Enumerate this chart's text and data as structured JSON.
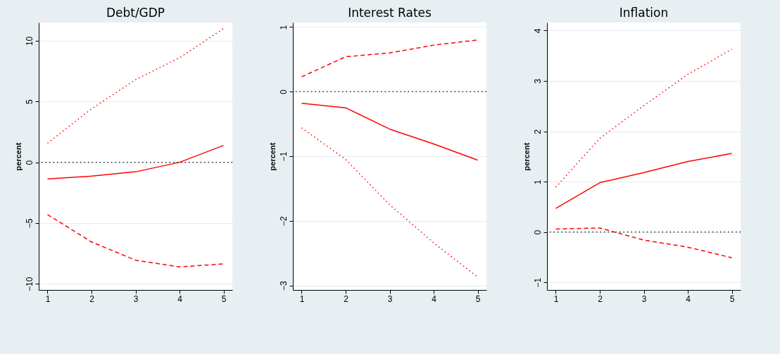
{
  "chart_data": [
    {
      "type": "line",
      "title": "Debt/GDP",
      "ylabel": "percent",
      "x": [
        1,
        2,
        3,
        4,
        5
      ],
      "xlim": [
        0.8,
        5.2
      ],
      "xticks": [
        1,
        2,
        3,
        4,
        5
      ],
      "ylim": [
        -10.5,
        11.5
      ],
      "yticks": [
        -10,
        -5,
        0,
        5,
        10
      ],
      "grid": "y",
      "series": [
        {
          "color": "#ff0000",
          "line_style": "solid",
          "values": [
            -1.37,
            -1.14,
            -0.78,
            0,
            1.39
          ]
        },
        {
          "color": "#ff0000",
          "line_style": "dotted",
          "values": [
            1.57,
            4.4,
            6.8,
            8.6,
            11.0
          ]
        },
        {
          "color": "#ff0000",
          "line_style": "dashed",
          "values": [
            -4.3,
            -6.55,
            -8.05,
            -8.6,
            -8.36
          ]
        }
      ],
      "ref_lines": [
        {
          "axis": "y",
          "value": 0,
          "color": "#000000",
          "line_style": "dotted"
        }
      ]
    },
    {
      "type": "line",
      "title": "Interest Rates",
      "ylabel": "percent",
      "x": [
        1,
        2,
        3,
        4,
        5
      ],
      "xlim": [
        0.8,
        5.2
      ],
      "xticks": [
        1,
        2,
        3,
        4,
        5
      ],
      "ylim": [
        -3.07,
        1.07
      ],
      "yticks": [
        -3,
        -2,
        -1,
        0,
        1
      ],
      "grid": "y",
      "series": [
        {
          "color": "#ff0000",
          "line_style": "solid",
          "values": [
            -0.18,
            -0.25,
            -0.58,
            -0.81,
            -1.06
          ]
        },
        {
          "color": "#ff0000",
          "line_style": "dashed",
          "values": [
            0.23,
            0.54,
            0.6,
            0.72,
            0.8
          ]
        },
        {
          "color": "#ff0000",
          "line_style": "dotted",
          "values": [
            -0.56,
            -1.05,
            -1.75,
            -2.34,
            -2.87
          ]
        }
      ],
      "ref_lines": [
        {
          "axis": "y",
          "value": 0,
          "color": "#000000",
          "line_style": "dotted"
        }
      ]
    },
    {
      "type": "line",
      "title": "Inflation",
      "ylabel": "percent",
      "x": [
        1,
        2,
        3,
        4,
        5
      ],
      "xlim": [
        0.8,
        5.2
      ],
      "xticks": [
        1,
        2,
        3,
        4,
        5
      ],
      "ylim": [
        -1.15,
        4.16
      ],
      "yticks": [
        -1,
        0,
        1,
        2,
        3,
        4
      ],
      "grid": "y",
      "series": [
        {
          "color": "#ff0000",
          "line_style": "solid",
          "values": [
            0.47,
            0.98,
            1.18,
            1.4,
            1.56
          ]
        },
        {
          "color": "#ff0000",
          "line_style": "dotted",
          "values": [
            0.89,
            1.86,
            2.51,
            3.13,
            3.63
          ]
        },
        {
          "color": "#ff0000",
          "line_style": "dashed",
          "values": [
            0.06,
            0.08,
            -0.16,
            -0.3,
            -0.51
          ]
        }
      ],
      "ref_lines": [
        {
          "axis": "y",
          "value": 0,
          "color": "#000000",
          "line_style": "dotted"
        }
      ]
    }
  ]
}
